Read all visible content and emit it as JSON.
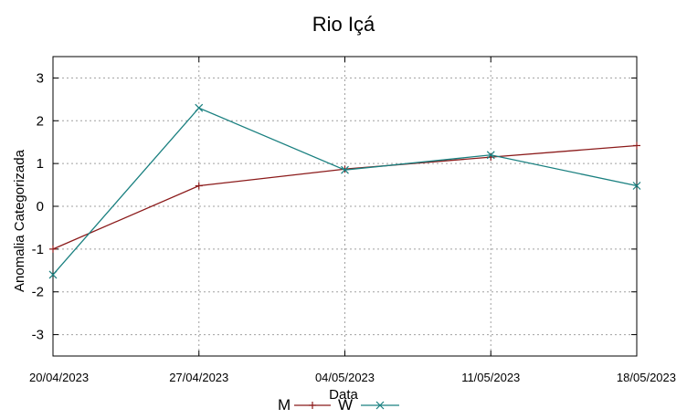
{
  "chart_data": {
    "type": "line",
    "title": "Rio Içá",
    "xlabel": "Data",
    "ylabel": "Anomalia Categorizada",
    "ylim": [
      -3.5,
      3.5
    ],
    "yticks": [
      -3,
      -2,
      -1,
      0,
      1,
      2,
      3
    ],
    "ytick_labels": [
      "-3",
      "-2",
      "-1",
      "0",
      "1",
      "2",
      "3"
    ],
    "categories": [
      "20/04/2023",
      "27/04/2023",
      "04/05/2023",
      "11/05/2023",
      "18/05/2023"
    ],
    "grid": true,
    "legend": "bottom-center",
    "series": [
      {
        "name": "M",
        "color": "#8b1a1a",
        "marker": "plus",
        "values": [
          -1.0,
          0.48,
          0.87,
          1.15,
          1.42
        ]
      },
      {
        "name": "W",
        "color": "#1a8080",
        "marker": "cross",
        "values": [
          -1.6,
          2.3,
          0.85,
          1.2,
          0.48
        ]
      }
    ]
  }
}
